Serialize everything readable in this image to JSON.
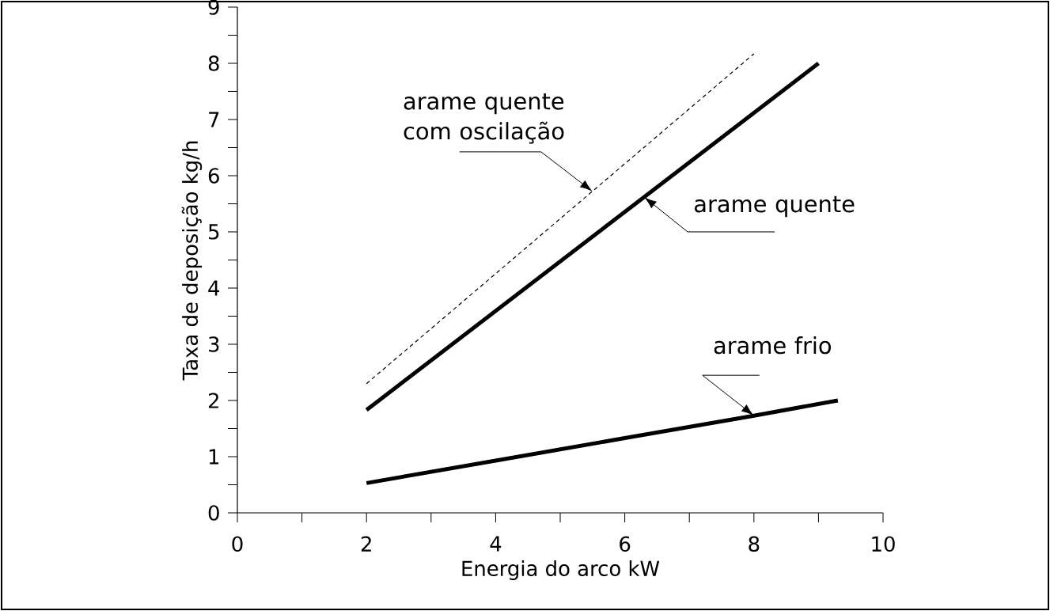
{
  "chart_data": {
    "type": "line",
    "xlabel": "Energia do arco kW",
    "ylabel": "Taxa de deposição kg/h",
    "xlim": [
      0,
      10
    ],
    "ylim": [
      0,
      9
    ],
    "xticks": [
      0,
      {
        "value": 1,
        "label": null
      },
      2,
      {
        "value": 3,
        "label": null
      },
      4,
      {
        "value": 5,
        "label": null
      },
      6,
      {
        "value": 7,
        "label": null
      },
      8,
      {
        "value": 9,
        "label": null
      },
      10
    ],
    "yticks": [
      0,
      {
        "value": 0.5,
        "label": null
      },
      1,
      {
        "value": 1.5,
        "label": null
      },
      2,
      {
        "value": 2.5,
        "label": null
      },
      3,
      {
        "value": 3.5,
        "label": null
      },
      4,
      {
        "value": 4.5,
        "label": null
      },
      5,
      {
        "value": 5.5,
        "label": null
      },
      6,
      {
        "value": 6.5,
        "label": null
      },
      7,
      {
        "value": 7.5,
        "label": null
      },
      8,
      {
        "value": 8.5,
        "label": null
      },
      9
    ],
    "series": [
      {
        "color": "#000000",
        "line_style": "dashed",
        "x": [
          2,
          8
        ],
        "values": [
          2.3,
          8.17
        ]
      },
      {
        "color": "#000000",
        "line_style": "solid",
        "x": [
          2,
          9
        ],
        "values": [
          1.83,
          8.0
        ]
      },
      {
        "color": "#000000",
        "line_style": "solid",
        "x": [
          2,
          4,
          6,
          8,
          9.3
        ],
        "values": [
          0.53,
          0.93,
          1.33,
          1.73,
          2.0
        ]
      }
    ],
    "annotations": [
      {
        "text": "arame quente com oscilação",
        "x": 5.5,
        "y": 5.72
      },
      {
        "text": "arame quente",
        "x": 6.3,
        "y": 5.62
      },
      {
        "text": "arame frio",
        "x": 8,
        "y": 1.73
      }
    ]
  }
}
